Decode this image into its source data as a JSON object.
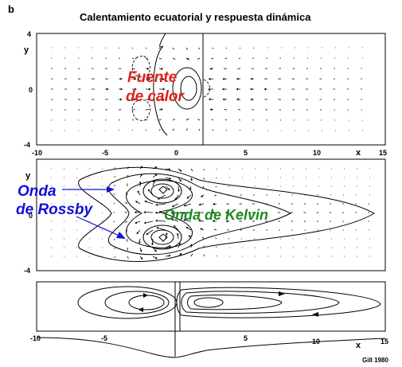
{
  "figure": {
    "panel_letter": "b",
    "title": "Calentamiento ecuatorial y respuesta dinámica",
    "credit": "Gill 1980"
  },
  "axes": {
    "x_name": "x",
    "y_name": "y",
    "x_ticks": [
      "-10",
      "-5",
      "0",
      "5",
      "10",
      "15"
    ],
    "y_ticks_top": [
      "4",
      "0",
      "-4"
    ],
    "y_ticks_mid": [
      "y",
      "0",
      "-4"
    ]
  },
  "annotations": {
    "heat_source_1": "Fuente",
    "heat_source_2": "de calor",
    "rossby_1": "Onda",
    "rossby_2": "de Rossby",
    "kelvin": "Onda de Kelvin"
  },
  "colors": {
    "heat": "#e0201b",
    "rossby": "#1010d8",
    "kelvin": "#1e8a1e"
  }
}
